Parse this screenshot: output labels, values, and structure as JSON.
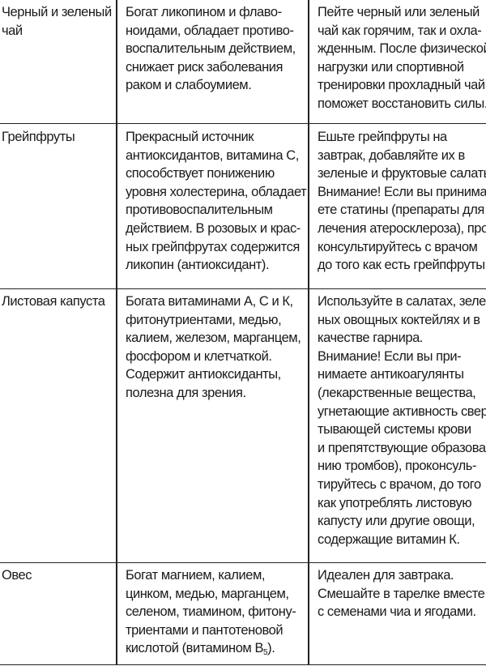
{
  "table": {
    "rows": [
      {
        "food": [
          "Черный и зеленый",
          "чай"
        ],
        "benefits": [
          "Богат ликопином и флаво-",
          "ноидами, обладает противо-",
          "воспалительным действием,",
          "снижает риск заболевания",
          "раком и слабоумием."
        ],
        "advice": [
          "Пейте черный или зеленый",
          "чай как горячим, так и охла-",
          "жденным. После физической",
          "нагрузки или спортивной",
          "тренировки прохладный чай",
          "поможет восстановить силы."
        ]
      },
      {
        "food": [
          "Грейпфруты"
        ],
        "benefits": [
          "Прекрасный источник",
          "антиоксидантов, витамина С,",
          "способствует понижению",
          "уровня холестерина, обладает",
          "противовоспалительным",
          "действием. В розовых и крас-",
          "ных грейпфрутах содержится",
          "ликопин (антиоксидант)."
        ],
        "advice": [
          "Ешьте грейпфруты на",
          "завтрак, добавляйте их в",
          "зеленые и фруктовые салаты.",
          "Внимание! Если вы принима-",
          "ете статины (препараты для",
          "лечения атеросклероза), про-",
          "консультируйтесь с врачом",
          "до того как есть грейпфруты."
        ]
      },
      {
        "food": [
          "Листовая капуста"
        ],
        "benefits": [
          "Богата витаминами А, С и К,",
          "фитонутриентами, медью,",
          "калием, железом, марганцем,",
          "фосфором и клетчаткой.",
          "Содержит антиоксиданты,",
          "полезна для зрения."
        ],
        "advice": [
          "Используйте в салатах, зеле-",
          "ных овощных коктейлях и в",
          "качестве гарнира.",
          "Внимание! Если вы при-",
          "нимаете антикоагулянты",
          "(лекарственные вещества,",
          "угнетающие активность свер-",
          "тывающей системы крови",
          "и препятствующие образова-",
          "нию тромбов), проконсуль-",
          "тируйтесь с врачом, до того",
          "как употреблять листовую",
          "капусту или другие овощи,",
          "содержащие витамин К."
        ]
      },
      {
        "food": [
          "Овес"
        ],
        "benefits": [
          "Богат магнием, калием,",
          "цинком, медью, марганцем,",
          "селеном, тиамином, фитону-",
          "триентами и пантотеновой",
          "кислотой (витамином B"
        ],
        "benefits_subscript": "5",
        "benefits_tail": ").",
        "advice": [
          "Идеален для завтрака.",
          "Смешайте в тарелке вместе",
          "с семенами чиа и ягодами."
        ]
      }
    ]
  }
}
